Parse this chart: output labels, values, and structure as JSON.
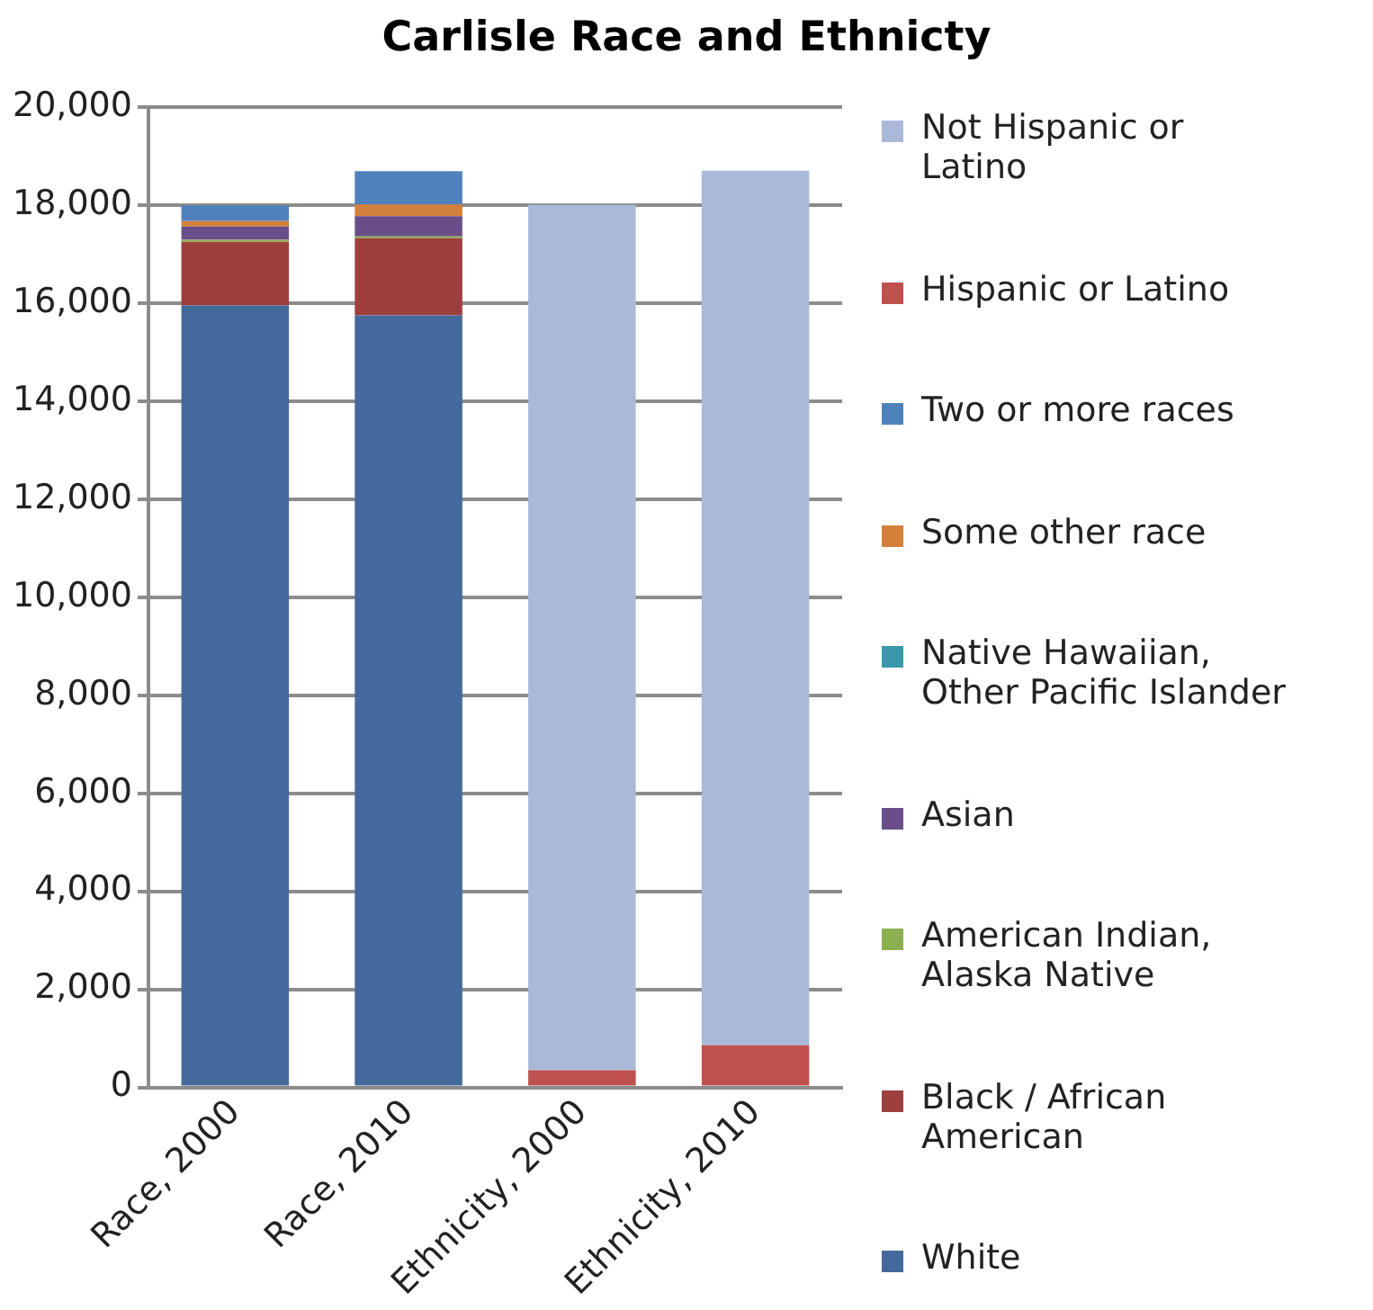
{
  "chart_data": {
    "type": "bar",
    "title": "Carlisle Race and Ethnicty",
    "categories": [
      "Race, 2000",
      "Race, 2010",
      "Ethnicity, 2000",
      "Ethnicity, 2010"
    ],
    "stacked": true,
    "series": [
      {
        "name": "White",
        "color": "#44699b",
        "values": [
          15950,
          15750,
          null,
          null
        ]
      },
      {
        "name": "Black / African American",
        "color": "#9e3f3d",
        "values": [
          1300,
          1570,
          null,
          null
        ]
      },
      {
        "name": "American Indian, Alaska Native",
        "color": "#8cb050",
        "values": [
          40,
          40,
          null,
          null
        ]
      },
      {
        "name": "Asian",
        "color": "#6a4e8a",
        "values": [
          270,
          410,
          null,
          null
        ]
      },
      {
        "name": "Native Hawaiian, Other Pacific Islander",
        "color": "#3a98ac",
        "values": [
          null,
          null,
          null,
          null
        ]
      },
      {
        "name": "Some other race",
        "color": "#d2803a",
        "values": [
          110,
          240,
          null,
          null
        ]
      },
      {
        "name": "Two or more races",
        "color": "#4f81bd",
        "values": [
          320,
          680,
          null,
          null
        ]
      },
      {
        "name": "Hispanic or Latino",
        "color": "#c0504d",
        "values": [
          null,
          null,
          350,
          860
        ]
      },
      {
        "name": "Not Hispanic or Latino",
        "color": "#a9b9d7",
        "values": [
          null,
          null,
          17650,
          17840
        ]
      }
    ],
    "ylim": [
      0,
      20000
    ],
    "yticks": [
      0,
      {
        "value": 2000,
        "label": "2,000"
      },
      {
        "value": 4000,
        "label": "4,000"
      },
      {
        "value": 6000,
        "label": "6,000"
      },
      {
        "value": 8000,
        "label": "8,000"
      },
      {
        "value": 10000,
        "label": "10,000"
      },
      {
        "value": 12000,
        "label": "12,000"
      },
      {
        "value": 14000,
        "label": "14,000"
      },
      {
        "value": 16000,
        "label": "16,000"
      },
      {
        "value": 18000,
        "label": "18,000"
      },
      {
        "value": 20000,
        "label": "20,000"
      }
    ],
    "grid": "y",
    "legend": "right"
  }
}
